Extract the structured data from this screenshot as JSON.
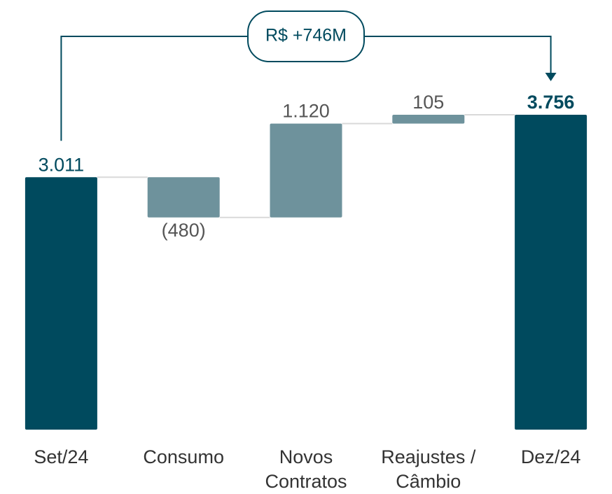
{
  "chart_data": {
    "type": "waterfall",
    "categories": [
      "Set/24",
      "Consumo",
      "Novos Contratos",
      "Reajustes / Câmbio",
      "Dez/24"
    ],
    "values": [
      3011,
      -480,
      1120,
      105,
      3756
    ],
    "value_labels": [
      "3.011",
      "(480)",
      "1.120",
      "105",
      "3.756"
    ],
    "measure": [
      "absolute",
      "relative",
      "relative",
      "relative",
      "total"
    ],
    "total_color": "#004a5e",
    "delta_color": "#6e929c",
    "annotation": "R$ +746M"
  }
}
